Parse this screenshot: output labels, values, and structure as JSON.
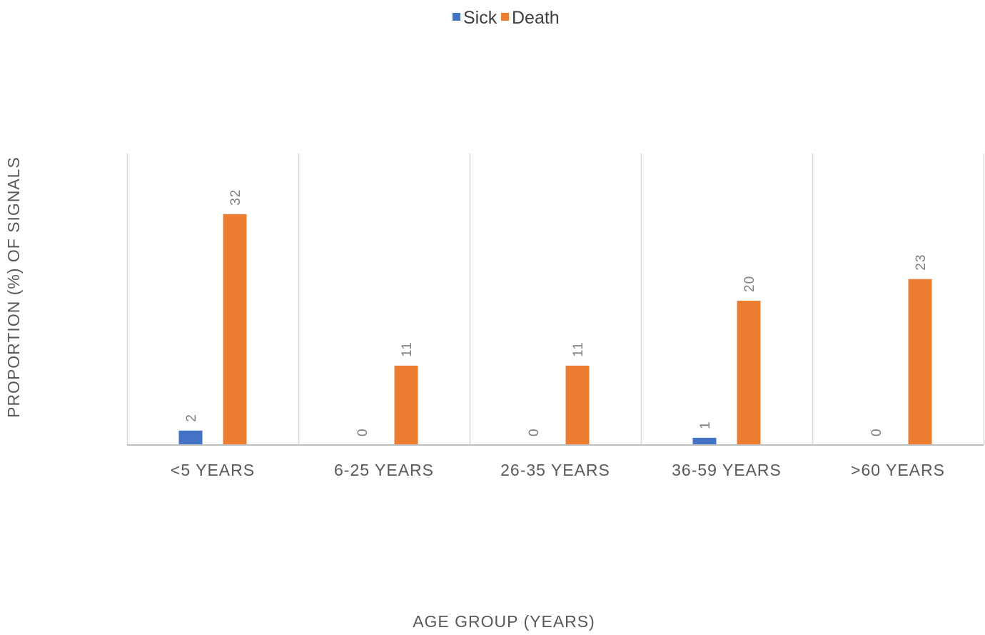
{
  "chart_data": {
    "type": "bar",
    "categories": [
      "<5 YEARS",
      "6-25 YEARS",
      "26-35 YEARS",
      "36-59 YEARS",
      ">60 YEARS"
    ],
    "series": [
      {
        "name": "Sick",
        "values": [
          2,
          0,
          0,
          1,
          0
        ],
        "color": "#4472C4"
      },
      {
        "name": "Death",
        "values": [
          32,
          11,
          11,
          20,
          23
        ],
        "color": "#ED7D31"
      }
    ],
    "xlabel": "AGE GROUP (YEARS)",
    "ylabel": "PROPORTION (%) OF SIGNALS",
    "ylim": [
      0,
      40
    ],
    "grid": "vertical separators between categories",
    "legend_position": "top",
    "data_labels": "rotated above bars"
  }
}
